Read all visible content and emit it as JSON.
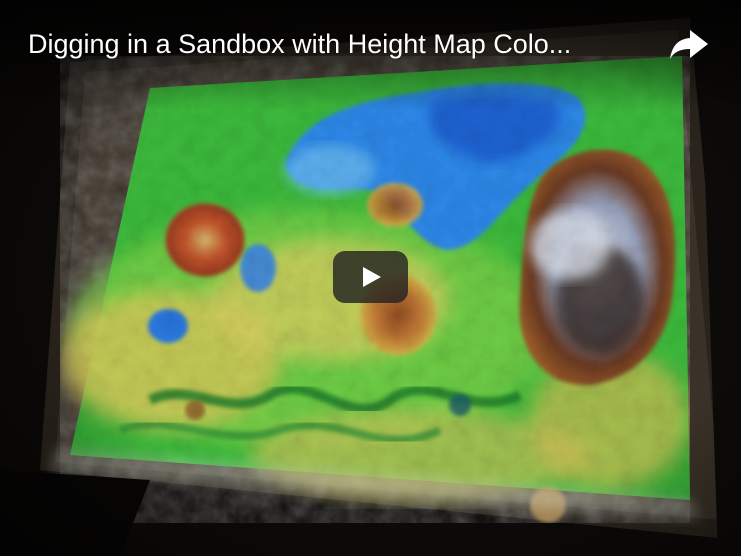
{
  "player": {
    "title": "Digging in a Sandbox with Height Map Colo...",
    "share_icon": "share-arrow-icon",
    "play_icon": "play-icon",
    "play_button_color": "#212121",
    "play_button_opacity": 0.8
  },
  "colors": {
    "terrain_green": "#3fbf3a",
    "terrain_yellow": "#d8c24a",
    "water_blue": "#2f7fe6",
    "peak_red": "#b0442a",
    "peak_brown": "#5a2a1a"
  }
}
